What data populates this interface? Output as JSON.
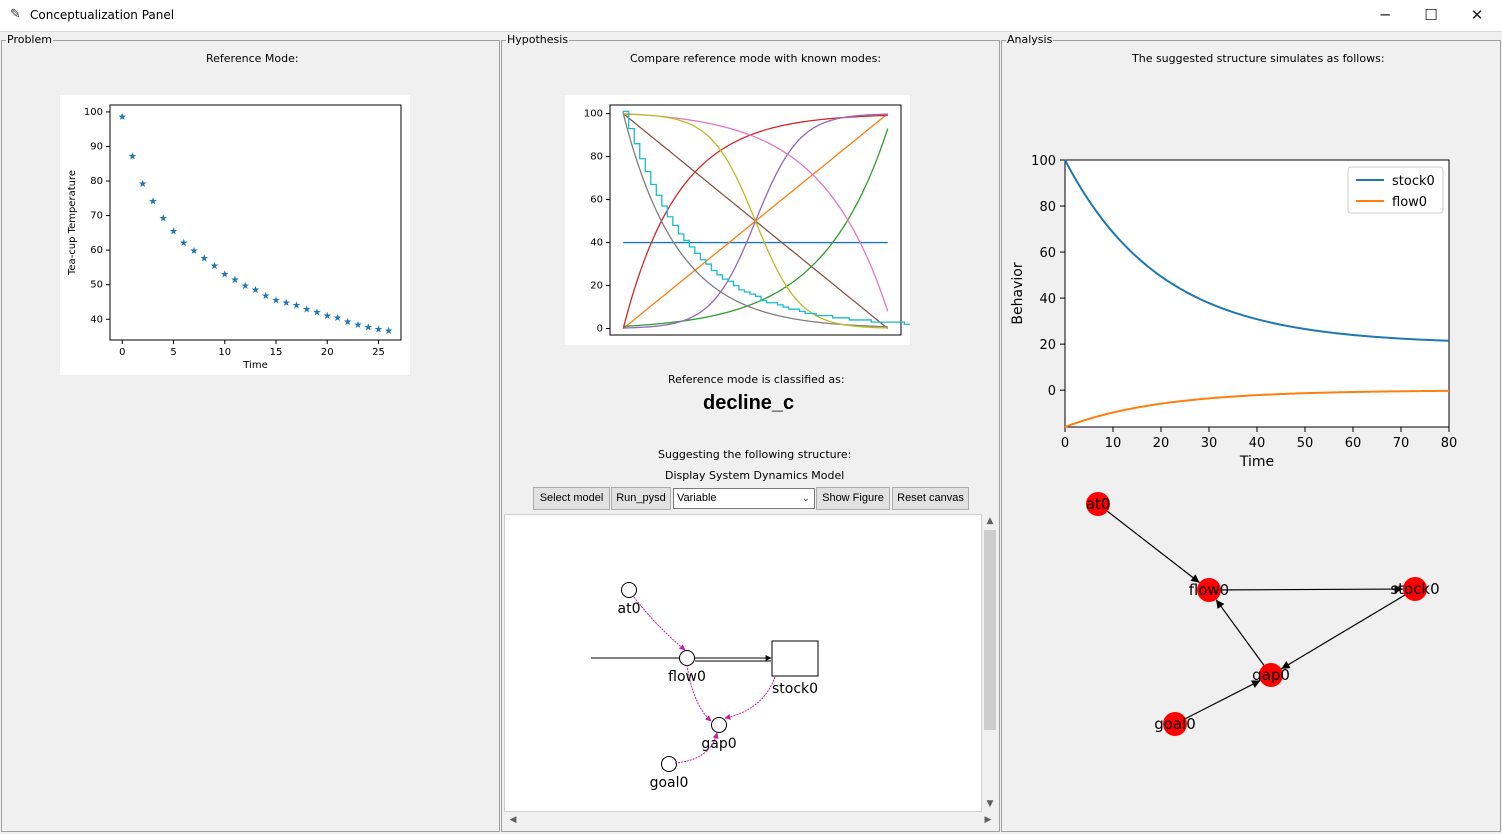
{
  "window": {
    "title": "Conceptualization Panel",
    "minimize_glyph": "─",
    "maximize_glyph": "☐",
    "close_glyph": "✕",
    "app_icon": "feather-icon"
  },
  "problem": {
    "frame_label": "Problem",
    "reference_label": "Reference Mode:",
    "chart": {
      "type": "scatter",
      "marker": "★",
      "marker_color": "#1f77b4",
      "xlabel": "Time",
      "ylabel": "Tea-cup Temperature",
      "xlim": [
        -1.2,
        27.2
      ],
      "ylim": [
        34.0,
        102.0
      ],
      "xticks": [
        0,
        5,
        10,
        15,
        20,
        25
      ],
      "yticks": [
        40,
        50,
        60,
        70,
        80,
        90,
        100
      ],
      "x": [
        0,
        1,
        2,
        3,
        4,
        5,
        6,
        7,
        8,
        9,
        10,
        11,
        12,
        13,
        14,
        15,
        16,
        17,
        18,
        19,
        20,
        21,
        22,
        23,
        24,
        25,
        26
      ],
      "y": [
        98.8,
        87.4,
        79.4,
        74.4,
        69.4,
        65.7,
        62.3,
        60.1,
        57.9,
        55.7,
        53.3,
        51.7,
        49.9,
        48.7,
        47.0,
        45.7,
        45.0,
        44.3,
        43.1,
        42.2,
        41.3,
        40.6,
        39.5,
        38.6,
        37.9,
        37.3,
        36.9
      ]
    }
  },
  "hypothesis": {
    "frame_label": "Hypothesis",
    "compare_label": "Compare reference mode with known modes:",
    "known_modes_chart": {
      "type": "line",
      "xlim": [
        -1.2,
        25.2
      ],
      "ylim": [
        -3,
        104
      ],
      "yticks": [
        0,
        20,
        40,
        60,
        80,
        100
      ],
      "series": [
        {
          "name": "constant",
          "color": "#1f77b4",
          "kind": "const"
        },
        {
          "name": "linear growth",
          "color": "#ff7f0e",
          "kind": "lin_up"
        },
        {
          "name": "exponential growth",
          "color": "#2ca02c",
          "kind": "exp_up"
        },
        {
          "name": "goal-seeking growth",
          "color": "#d62728",
          "kind": "goal_up"
        },
        {
          "name": "s-shaped growth",
          "color": "#9467bd",
          "kind": "s_up"
        },
        {
          "name": "linear decline",
          "color": "#8c564b",
          "kind": "lin_down"
        },
        {
          "name": "exponential decline",
          "color": "#e377c2",
          "kind": "exp_down"
        },
        {
          "name": "goal-seeking decline",
          "color": "#7f7f7f",
          "kind": "goal_down"
        },
        {
          "name": "s-shaped decline",
          "color": "#bcbd22",
          "kind": "s_down"
        },
        {
          "name": "reference mode",
          "color": "#17becf",
          "kind": "steps"
        }
      ]
    },
    "classified_label": "Reference mode is classified as:",
    "classification": "decline_c",
    "suggesting_label": "Suggesting the following structure:",
    "display_label": "Display System Dynamics Model",
    "toolbar": {
      "select_model": "Select model",
      "run_pysd": "Run_pysd",
      "variable_value": "Variable",
      "show_figure": "Show Figure",
      "reset_canvas": "Reset canvas"
    },
    "sd_model": {
      "nodes": {
        "at0": "at0",
        "flow0": "flow0",
        "stock0": "stock0",
        "gap0": "gap0",
        "goal0": "goal0"
      },
      "link_color": "#c020a0"
    }
  },
  "analysis": {
    "frame_label": "Analysis",
    "simulation_label": "The suggested structure simulates as follows:",
    "chart": {
      "type": "line",
      "xlabel": "Time",
      "ylabel": "Behavior",
      "xlim": [
        0,
        80
      ],
      "ylim": [
        -16,
        100
      ],
      "xticks": [
        0,
        10,
        20,
        30,
        40,
        50,
        60,
        70,
        80
      ],
      "yticks": [
        0,
        20,
        40,
        60,
        80,
        100
      ],
      "legend": "top-right",
      "series": [
        {
          "name": "stock0",
          "color": "#1f77b4",
          "start": 100,
          "end": 21.1,
          "goal": 20,
          "rate": 0.05
        },
        {
          "name": "flow0",
          "color": "#ff7f0e",
          "start": -16,
          "end": -0.3,
          "goal": 0,
          "rate": 0.05
        }
      ]
    },
    "graph": {
      "node_color": "#ff0000",
      "nodes": [
        "at0",
        "flow0",
        "stock0",
        "gap0",
        "goal0"
      ],
      "edges": [
        [
          "at0",
          "flow0"
        ],
        [
          "flow0",
          "stock0"
        ],
        [
          "stock0",
          "gap0"
        ],
        [
          "gap0",
          "flow0"
        ],
        [
          "goal0",
          "gap0"
        ]
      ]
    }
  }
}
